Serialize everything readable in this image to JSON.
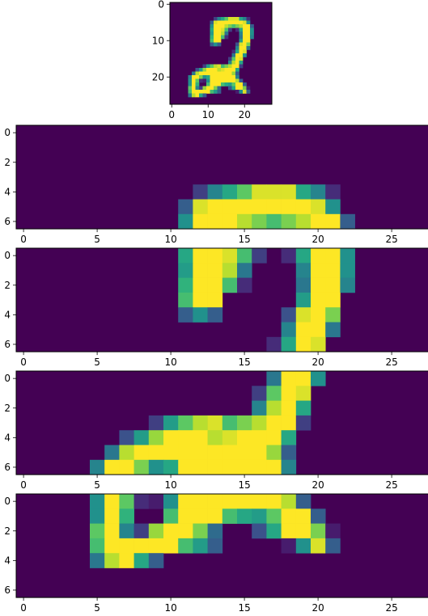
{
  "colormap": "viridis",
  "colors": {
    "low": "#440154",
    "high": "#fde725"
  },
  "chart_data": [
    {
      "type": "heatmap",
      "title": "",
      "xlabel": "",
      "ylabel": "",
      "xticks": [
        "0",
        "10",
        "20"
      ],
      "yticks": [
        "0",
        "10",
        "20"
      ],
      "shape": [
        28,
        28
      ],
      "rows": [
        {
          "r": 0,
          "cells": []
        },
        {
          "r": 1,
          "cells": []
        },
        {
          "r": 2,
          "cells": []
        },
        {
          "r": 3,
          "cells": []
        },
        {
          "r": 4,
          "cells": [
            [
              12,
              0.2
            ],
            [
              13,
              0.45
            ],
            [
              14,
              0.6
            ],
            [
              15,
              0.75
            ],
            [
              16,
              0.95
            ],
            [
              17,
              0.95
            ],
            [
              18,
              0.95
            ],
            [
              19,
              0.6
            ],
            [
              20,
              0.45
            ],
            [
              21,
              0.15
            ]
          ]
        },
        {
          "r": 5,
          "cells": [
            [
              11,
              0.3
            ],
            [
              12,
              0.95
            ],
            [
              13,
              1
            ],
            [
              14,
              1
            ],
            [
              15,
              1
            ],
            [
              16,
              1
            ],
            [
              17,
              1
            ],
            [
              18,
              1
            ],
            [
              19,
              1
            ],
            [
              20,
              0.95
            ],
            [
              21,
              0.5
            ]
          ]
        },
        {
          "r": 6,
          "cells": [
            [
              11,
              0.5
            ],
            [
              12,
              1
            ],
            [
              13,
              1
            ],
            [
              14,
              1
            ],
            [
              15,
              0.9
            ],
            [
              16,
              0.8
            ],
            [
              17,
              0.7
            ],
            [
              18,
              0.8
            ],
            [
              19,
              0.9
            ],
            [
              20,
              1
            ],
            [
              21,
              1
            ],
            [
              22,
              0.3
            ]
          ]
        },
        {
          "r": 7,
          "cells": [
            [
              11,
              0.6
            ],
            [
              12,
              1
            ],
            [
              13,
              1
            ],
            [
              14,
              0.95
            ],
            [
              15,
              0.7
            ],
            [
              16,
              0.2
            ],
            [
              18,
              0.15
            ],
            [
              19,
              0.6
            ],
            [
              20,
              1
            ],
            [
              21,
              1
            ],
            [
              22,
              0.5
            ]
          ]
        },
        {
          "r": 8,
          "cells": [
            [
              11,
              0.55
            ],
            [
              12,
              1
            ],
            [
              13,
              1
            ],
            [
              14,
              0.9
            ],
            [
              15,
              0.4
            ],
            [
              19,
              0.45
            ],
            [
              20,
              1
            ],
            [
              21,
              1
            ],
            [
              22,
              0.5
            ]
          ]
        },
        {
          "r": 9,
          "cells": [
            [
              11,
              0.65
            ],
            [
              12,
              1
            ],
            [
              13,
              1
            ],
            [
              14,
              0.7
            ],
            [
              15,
              0.15
            ],
            [
              19,
              0.4
            ],
            [
              20,
              1
            ],
            [
              21,
              1
            ],
            [
              22,
              0.45
            ]
          ]
        },
        {
          "r": 10,
          "cells": [
            [
              11,
              0.7
            ],
            [
              12,
              1
            ],
            [
              13,
              1
            ],
            [
              19,
              0.55
            ],
            [
              20,
              1
            ],
            [
              21,
              1
            ]
          ]
        },
        {
          "r": 11,
          "cells": [
            [
              11,
              0.3
            ],
            [
              12,
              0.5
            ],
            [
              13,
              0.3
            ],
            [
              18,
              0.25
            ],
            [
              19,
              0.95
            ],
            [
              20,
              1
            ],
            [
              21,
              0.8
            ]
          ]
        },
        {
          "r": 12,
          "cells": [
            [
              18,
              0.45
            ],
            [
              19,
              1
            ],
            [
              20,
              1
            ],
            [
              21,
              0.4
            ]
          ]
        },
        {
          "r": 13,
          "cells": [
            [
              17,
              0.15
            ],
            [
              18,
              0.6
            ],
            [
              19,
              1
            ],
            [
              20,
              0.95
            ]
          ]
        },
        {
          "r": 14,
          "cells": [
            [
              17,
              0.4
            ],
            [
              18,
              1
            ],
            [
              19,
              1
            ],
            [
              20,
              0.5
            ]
          ]
        },
        {
          "r": 15,
          "cells": [
            [
              16,
              0.2
            ],
            [
              17,
              0.75
            ],
            [
              18,
              1
            ],
            [
              19,
              0.95
            ]
          ]
        },
        {
          "r": 16,
          "cells": [
            [
              16,
              0.45
            ],
            [
              17,
              0.9
            ],
            [
              18,
              1
            ],
            [
              19,
              0.6
            ]
          ]
        },
        {
          "r": 17,
          "cells": [
            [
              9,
              0.2
            ],
            [
              10,
              0.55
            ],
            [
              11,
              0.75
            ],
            [
              12,
              0.9
            ],
            [
              13,
              0.95
            ],
            [
              14,
              0.7
            ],
            [
              15,
              0.8
            ],
            [
              16,
              0.9
            ],
            [
              17,
              1
            ],
            [
              18,
              1
            ],
            [
              19,
              0.2
            ]
          ]
        },
        {
          "r": 18,
          "cells": [
            [
              7,
              0.25
            ],
            [
              8,
              0.55
            ],
            [
              9,
              0.85
            ],
            [
              10,
              1
            ],
            [
              11,
              1
            ],
            [
              12,
              1
            ],
            [
              13,
              0.9
            ],
            [
              14,
              0.95
            ],
            [
              15,
              1
            ],
            [
              16,
              1
            ],
            [
              17,
              1
            ],
            [
              18,
              0.6
            ]
          ]
        },
        {
          "r": 19,
          "cells": [
            [
              6,
              0.4
            ],
            [
              7,
              0.9
            ],
            [
              8,
              1
            ],
            [
              9,
              1
            ],
            [
              10,
              1
            ],
            [
              11,
              1
            ],
            [
              12,
              1
            ],
            [
              13,
              1
            ],
            [
              14,
              1
            ],
            [
              15,
              1
            ],
            [
              16,
              1
            ],
            [
              17,
              0.85
            ],
            [
              18,
              0.3
            ]
          ]
        },
        {
          "r": 20,
          "cells": [
            [
              5,
              0.45
            ],
            [
              6,
              1
            ],
            [
              7,
              1
            ],
            [
              8,
              0.8
            ],
            [
              9,
              0.5
            ],
            [
              10,
              0.6
            ],
            [
              11,
              1
            ],
            [
              12,
              1
            ],
            [
              13,
              1
            ],
            [
              14,
              1
            ],
            [
              15,
              1
            ],
            [
              16,
              1
            ],
            [
              17,
              1
            ],
            [
              18,
              0.45
            ]
          ]
        },
        {
          "r": 21,
          "cells": [
            [
              5,
              0.5
            ],
            [
              6,
              1
            ],
            [
              7,
              0.75
            ],
            [
              8,
              0.15
            ],
            [
              9,
              0.1
            ],
            [
              10,
              0.5
            ],
            [
              11,
              1
            ],
            [
              12,
              1
            ],
            [
              13,
              1
            ],
            [
              14,
              1
            ],
            [
              15,
              1
            ],
            [
              16,
              1
            ],
            [
              17,
              1
            ],
            [
              18,
              0.9
            ],
            [
              19,
              0.3
            ]
          ]
        },
        {
          "r": 22,
          "cells": [
            [
              5,
              0.5
            ],
            [
              6,
              1
            ],
            [
              7,
              0.65
            ],
            [
              10,
              0.7
            ],
            [
              11,
              1
            ],
            [
              12,
              1
            ],
            [
              13,
              1
            ],
            [
              14,
              0.7
            ],
            [
              15,
              0.6
            ],
            [
              16,
              0.55
            ],
            [
              17,
              0.75
            ],
            [
              18,
              1
            ],
            [
              19,
              1
            ],
            [
              20,
              0.3
            ]
          ]
        },
        {
          "r": 23,
          "cells": [
            [
              5,
              0.75
            ],
            [
              6,
              1
            ],
            [
              7,
              0.45
            ],
            [
              8,
              0.2
            ],
            [
              9,
              0.85
            ],
            [
              10,
              1
            ],
            [
              11,
              1
            ],
            [
              12,
              0.8
            ],
            [
              13,
              0.35
            ],
            [
              16,
              0.25
            ],
            [
              17,
              0.6
            ],
            [
              18,
              1
            ],
            [
              19,
              1
            ],
            [
              20,
              0.8
            ],
            [
              21,
              0.1
            ]
          ]
        },
        {
          "r": 24,
          "cells": [
            [
              5,
              0.7
            ],
            [
              6,
              1
            ],
            [
              7,
              1
            ],
            [
              8,
              1
            ],
            [
              9,
              1
            ],
            [
              10,
              1
            ],
            [
              11,
              0.7
            ],
            [
              12,
              0.55
            ],
            [
              13,
              0.3
            ],
            [
              18,
              0.1
            ],
            [
              19,
              0.5
            ],
            [
              20,
              0.95
            ],
            [
              21,
              0.3
            ]
          ]
        },
        {
          "r": 25,
          "cells": [
            [
              5,
              0.4
            ],
            [
              6,
              0.9
            ],
            [
              7,
              1
            ],
            [
              8,
              0.6
            ],
            [
              9,
              0.3
            ]
          ]
        },
        {
          "r": 26,
          "cells": []
        },
        {
          "r": 27,
          "cells": []
        }
      ]
    },
    {
      "type": "heatmap",
      "slice_of": 0,
      "row_start": 0,
      "row_count": 7,
      "xlabel": "",
      "ylabel": "",
      "xticks": [
        "0",
        "5",
        "10",
        "15",
        "20",
        "25"
      ],
      "yticks": [
        "0",
        "2",
        "4",
        "6"
      ]
    },
    {
      "type": "heatmap",
      "slice_of": 0,
      "row_start": 7,
      "row_count": 7,
      "xlabel": "",
      "ylabel": "",
      "xticks": [
        "0",
        "5",
        "10",
        "15",
        "20",
        "25"
      ],
      "yticks": [
        "0",
        "2",
        "4",
        "6"
      ]
    },
    {
      "type": "heatmap",
      "slice_of": 0,
      "row_start": 14,
      "row_count": 7,
      "xlabel": "",
      "ylabel": "",
      "xticks": [
        "0",
        "5",
        "10",
        "15",
        "20",
        "25"
      ],
      "yticks": [
        "0",
        "2",
        "4",
        "6"
      ]
    },
    {
      "type": "heatmap",
      "slice_of": 0,
      "row_start": 21,
      "row_count": 7,
      "xlabel": "",
      "ylabel": "",
      "xticks": [
        "0",
        "5",
        "10",
        "15",
        "20",
        "25"
      ],
      "yticks": [
        "0",
        "2",
        "4",
        "6"
      ]
    }
  ]
}
